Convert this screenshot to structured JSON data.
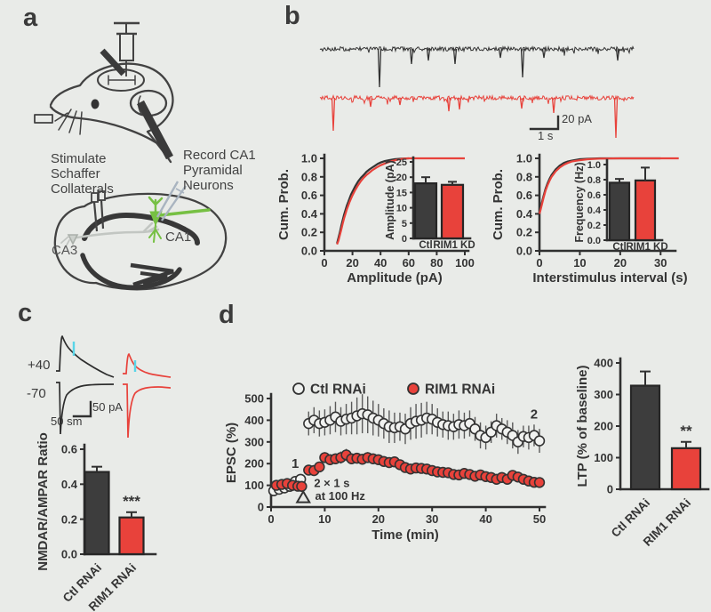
{
  "palette": {
    "background": "#e9ebe8",
    "ink": "#303030",
    "dark_bar": "#3d3d3d",
    "red": "#e8423b",
    "green": "#76c043",
    "cyan": "#59d5e8",
    "gray_axon": "#c2c6c2",
    "pipette": "#a9b4c0"
  },
  "panel_a": {
    "label": "a",
    "stimulate_lines": [
      "Stimulate",
      "Schaffer",
      "Collaterals"
    ],
    "record_lines": [
      "Record CA1",
      "Pyramidal",
      "Neurons"
    ],
    "ca3": "CA3",
    "ca1": "CA1"
  },
  "panel_b": {
    "label": "b",
    "scalebar": {
      "amplitude": "20 pA",
      "time": "1 s"
    }
  },
  "panel_c": {
    "label": "c",
    "trace_labels": {
      "plus40": "+40",
      "minus70": "-70"
    },
    "scalebar": {
      "amplitude": "50 pA",
      "time": "50 sm"
    }
  },
  "panel_d": {
    "label": "d"
  },
  "chart_data": [
    {
      "id": "b_amp_cum",
      "type": "line",
      "xlabel": "Amplitude (pA)",
      "ylabel": "Cum. Prob.",
      "xlim": [
        0,
        100
      ],
      "ylim": [
        0,
        1
      ],
      "xticks": [
        0,
        20,
        40,
        60,
        80,
        100
      ],
      "yticks": [
        0,
        0.2,
        0.4,
        0.6,
        0.8,
        1
      ],
      "series": [
        {
          "name": "Ctl",
          "color": "#333333",
          "x": [
            9,
            10,
            11,
            12,
            13,
            14,
            15,
            16,
            17,
            18,
            19,
            20,
            22,
            24,
            26,
            28,
            30,
            32,
            34,
            36,
            38,
            40,
            43,
            46,
            50,
            55,
            60
          ],
          "y": [
            0.08,
            0.14,
            0.2,
            0.27,
            0.33,
            0.39,
            0.44,
            0.49,
            0.53,
            0.57,
            0.61,
            0.64,
            0.7,
            0.75,
            0.79,
            0.82,
            0.855,
            0.88,
            0.9,
            0.92,
            0.94,
            0.955,
            0.97,
            0.98,
            0.99,
            0.997,
            1.0
          ]
        },
        {
          "name": "RIM1 KD",
          "color": "#e8423b",
          "x": [
            9,
            10,
            11,
            12,
            13,
            14,
            15,
            16,
            17,
            18,
            19,
            20,
            22,
            24,
            26,
            28,
            30,
            32,
            34,
            37,
            40,
            44,
            48,
            52,
            56,
            60,
            100
          ],
          "y": [
            0.07,
            0.11,
            0.17,
            0.23,
            0.29,
            0.35,
            0.4,
            0.45,
            0.49,
            0.53,
            0.565,
            0.6,
            0.66,
            0.71,
            0.755,
            0.79,
            0.82,
            0.845,
            0.87,
            0.9,
            0.925,
            0.95,
            0.97,
            0.985,
            0.995,
            1.0,
            1.0
          ]
        }
      ]
    },
    {
      "id": "b_amp_bars",
      "type": "bar",
      "ylabel": "Amplitude (pA)",
      "categories": [
        "Ctl",
        "RIM1 KD"
      ],
      "values": [
        18,
        17.5
      ],
      "errors": [
        2,
        1
      ],
      "ylim": [
        0,
        25
      ],
      "yticks": [
        0,
        5,
        10,
        15,
        20,
        25
      ],
      "colors": [
        "#3d3d3d",
        "#e8423b"
      ]
    },
    {
      "id": "b_isi_cum",
      "type": "line",
      "xlabel": "Interstimulus interval (s)",
      "ylabel": "Cum. Prob.",
      "xlim": [
        0,
        35
      ],
      "ylim": [
        0,
        1
      ],
      "xticks": [
        0,
        10,
        20,
        30
      ],
      "yticks": [
        0,
        0.2,
        0.4,
        0.6,
        0.8,
        1
      ],
      "series": [
        {
          "name": "Ctl",
          "color": "#333333",
          "x": [
            0,
            0.3,
            0.6,
            1,
            1.5,
            2,
            2.5,
            3,
            4,
            5,
            6,
            7,
            8,
            10,
            12,
            15,
            20,
            25,
            30
          ],
          "y": [
            0.4,
            0.46,
            0.52,
            0.59,
            0.67,
            0.73,
            0.78,
            0.82,
            0.88,
            0.92,
            0.95,
            0.965,
            0.975,
            0.99,
            0.995,
            1.0,
            1.0,
            1.0,
            1.0
          ]
        },
        {
          "name": "RIM1 KD",
          "color": "#e8423b",
          "x": [
            0,
            0.3,
            0.6,
            1,
            1.5,
            2,
            2.5,
            3,
            4,
            5,
            6,
            7,
            8,
            10,
            12,
            15,
            20,
            25,
            30,
            34.5
          ],
          "y": [
            0.4,
            0.45,
            0.5,
            0.57,
            0.65,
            0.71,
            0.76,
            0.8,
            0.86,
            0.9,
            0.93,
            0.95,
            0.965,
            0.98,
            0.99,
            0.997,
            1.0,
            1.0,
            1.0,
            1.0
          ]
        }
      ]
    },
    {
      "id": "b_freq_bars",
      "type": "bar",
      "ylabel": "Frequency (Hz)",
      "categories": [
        "Ctl",
        "RIM1 KD"
      ],
      "values": [
        0.76,
        0.79
      ],
      "errors": [
        0.05,
        0.17
      ],
      "ylim": [
        0,
        1
      ],
      "yticks": [
        0,
        0.2,
        0.4,
        0.6,
        0.8,
        1
      ],
      "colors": [
        "#3d3d3d",
        "#e8423b"
      ]
    },
    {
      "id": "c_ratio_bars",
      "type": "bar",
      "ylabel": "NMDAR/AMPAR Ratio",
      "categories": [
        "Ctl RNAi",
        "RIM1 RNAi"
      ],
      "values": [
        0.47,
        0.21
      ],
      "errors": [
        0.03,
        0.03
      ],
      "ylim": [
        0,
        0.6
      ],
      "yticks": [
        0,
        0.2,
        0.4,
        0.6
      ],
      "colors": [
        "#3d3d3d",
        "#e8423b"
      ],
      "sig": {
        "index": 1,
        "text": "***"
      }
    },
    {
      "id": "d_timecourse",
      "type": "scatter",
      "xlabel": "Time (min)",
      "ylabel": "EPSC (%)",
      "xlim": [
        0,
        50
      ],
      "ylim": [
        0,
        500
      ],
      "xticks": [
        0,
        10,
        20,
        30,
        40,
        50
      ],
      "yticks": [
        0,
        100,
        200,
        300,
        400,
        500
      ],
      "series": [
        {
          "name": "Ctl RNAi",
          "marker": "open",
          "color": "#3d3d3d",
          "points": [
            [
              0.5,
              75,
              12
            ],
            [
              1.5,
              82,
              10
            ],
            [
              2.5,
              88,
              10
            ],
            [
              3.5,
              95,
              10
            ],
            [
              4.5,
              118,
              12
            ],
            [
              5.5,
              128,
              12
            ],
            [
              7,
              385,
              55
            ],
            [
              8,
              400,
              60
            ],
            [
              9,
              385,
              60
            ],
            [
              10,
              390,
              60
            ],
            [
              11,
              400,
              65
            ],
            [
              12,
              415,
              70
            ],
            [
              13,
              395,
              65
            ],
            [
              14,
              405,
              70
            ],
            [
              15,
              410,
              75
            ],
            [
              16,
              420,
              85
            ],
            [
              17,
              430,
              90
            ],
            [
              18,
              425,
              85
            ],
            [
              19,
              410,
              80
            ],
            [
              20,
              400,
              75
            ],
            [
              21,
              385,
              70
            ],
            [
              22,
              370,
              75
            ],
            [
              23,
              365,
              70
            ],
            [
              24,
              370,
              65
            ],
            [
              25,
              360,
              70
            ],
            [
              26,
              385,
              75
            ],
            [
              27,
              395,
              80
            ],
            [
              28,
              400,
              80
            ],
            [
              29,
              410,
              75
            ],
            [
              30,
              405,
              70
            ],
            [
              31,
              390,
              65
            ],
            [
              32,
              380,
              60
            ],
            [
              33,
              375,
              65
            ],
            [
              34,
              370,
              60
            ],
            [
              35,
              380,
              65
            ],
            [
              36,
              375,
              60
            ],
            [
              37,
              385,
              60
            ],
            [
              38,
              360,
              55
            ],
            [
              39,
              330,
              60
            ],
            [
              40,
              320,
              55
            ],
            [
              41,
              345,
              50
            ],
            [
              42,
              375,
              55
            ],
            [
              43,
              360,
              50
            ],
            [
              44,
              345,
              55
            ],
            [
              45,
              330,
              60
            ],
            [
              46,
              300,
              55
            ],
            [
              47,
              325,
              50
            ],
            [
              48,
              320,
              55
            ],
            [
              49,
              330,
              50
            ],
            [
              50,
              305,
              55
            ]
          ]
        },
        {
          "name": "RIM1 RNAi",
          "marker": "filled",
          "color": "#e8423b",
          "points": [
            [
              1,
              100,
              10
            ],
            [
              2,
              104,
              10
            ],
            [
              3,
              108,
              10
            ],
            [
              4,
              100,
              10
            ],
            [
              5,
              96,
              10
            ],
            [
              5.7,
              95,
              10
            ],
            [
              7,
              170,
              20
            ],
            [
              8,
              168,
              20
            ],
            [
              9,
              185,
              22
            ],
            [
              10,
              228,
              25
            ],
            [
              11,
              218,
              25
            ],
            [
              12,
              222,
              25
            ],
            [
              13,
              228,
              28
            ],
            [
              14,
              240,
              28
            ],
            [
              15,
              222,
              25
            ],
            [
              16,
              225,
              25
            ],
            [
              17,
              220,
              25
            ],
            [
              18,
              228,
              25
            ],
            [
              19,
              222,
              25
            ],
            [
              20,
              218,
              22
            ],
            [
              21,
              210,
              22
            ],
            [
              22,
              205,
              22
            ],
            [
              23,
              208,
              22
            ],
            [
              24,
              195,
              20
            ],
            [
              25,
              182,
              20
            ],
            [
              26,
              175,
              20
            ],
            [
              27,
              180,
              20
            ],
            [
              28,
              178,
              20
            ],
            [
              29,
              175,
              20
            ],
            [
              30,
              168,
              18
            ],
            [
              31,
              162,
              18
            ],
            [
              32,
              160,
              18
            ],
            [
              33,
              158,
              18
            ],
            [
              34,
              150,
              18
            ],
            [
              35,
              148,
              16
            ],
            [
              36,
              155,
              16
            ],
            [
              37,
              150,
              16
            ],
            [
              38,
              142,
              16
            ],
            [
              39,
              148,
              16
            ],
            [
              40,
              140,
              15
            ],
            [
              41,
              136,
              15
            ],
            [
              42,
              128,
              15
            ],
            [
              43,
              136,
              15
            ],
            [
              44,
              128,
              14
            ],
            [
              45,
              146,
              15
            ],
            [
              46,
              138,
              14
            ],
            [
              47,
              128,
              14
            ],
            [
              48,
              120,
              13
            ],
            [
              49,
              114,
              13
            ],
            [
              50,
              113,
              13
            ]
          ]
        }
      ],
      "annotations": [
        {
          "text": "1",
          "x": 3.8,
          "y": 180
        },
        {
          "text": "2",
          "x": 48.3,
          "y": 408
        },
        {
          "text": "2 × 1 s",
          "x": 8,
          "y": 92
        },
        {
          "text": "at 100 Hz",
          "x": 8.2,
          "y": 32
        }
      ],
      "stim_marker": {
        "shape": "open-triangle",
        "x": 6,
        "y": 22
      }
    },
    {
      "id": "d_ltp_bars",
      "type": "bar",
      "ylabel": "LTP (% of baseline)",
      "categories": [
        "Ctl RNAi",
        "RIM1 RNAi"
      ],
      "values": [
        328,
        130
      ],
      "errors": [
        45,
        20
      ],
      "ylim": [
        0,
        400
      ],
      "yticks": [
        0,
        100,
        200,
        300,
        400
      ],
      "colors": [
        "#3d3d3d",
        "#e8423b"
      ],
      "sig": {
        "index": 1,
        "text": "**"
      }
    }
  ]
}
